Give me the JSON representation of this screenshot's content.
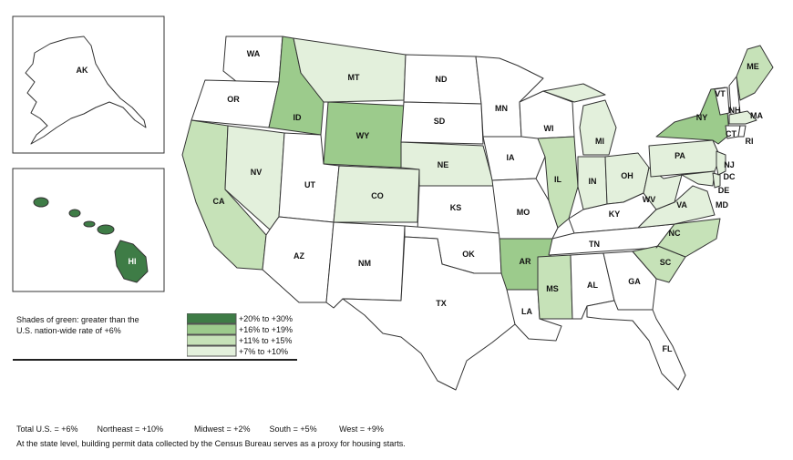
{
  "legend": {
    "title_line1": "Shades of green: greater than the",
    "title_line2": "U.S. nation-wide rate of +6%",
    "items": [
      {
        "label": "+20% to +30%",
        "color": "#3e7c46"
      },
      {
        "label": "+16% to +19%",
        "color": "#9ccb8c"
      },
      {
        "label": "+11% to +15%",
        "color": "#c6e2b8"
      },
      {
        "label": "+7% to +10%",
        "color": "#e3f0dc"
      }
    ]
  },
  "states": {
    "AK": "AK",
    "HI": "HI",
    "WA": "WA",
    "OR": "OR",
    "CA": "CA",
    "NV": "NV",
    "ID": "ID",
    "MT": "MT",
    "WY": "WY",
    "UT": "UT",
    "AZ": "AZ",
    "CO": "CO",
    "NM": "NM",
    "ND": "ND",
    "SD": "SD",
    "NE": "NE",
    "KS": "KS",
    "OK": "OK",
    "TX": "TX",
    "MN": "MN",
    "IA": "IA",
    "MO": "MO",
    "AR": "AR",
    "LA": "LA",
    "WI": "WI",
    "IL": "IL",
    "MS": "MS",
    "MI": "MI",
    "IN": "IN",
    "KY": "KY",
    "TN": "TN",
    "AL": "AL",
    "OH": "OH",
    "GA": "GA",
    "FL": "FL",
    "SC": "SC",
    "NC": "NC",
    "VA": "VA",
    "WV": "WV",
    "PA": "PA",
    "NY": "NY",
    "ME": "ME",
    "VT": "VT",
    "NH": "NH",
    "MA": "MA",
    "CT": "CT",
    "RI": "RI",
    "NJ": "NJ",
    "DE": "DE",
    "MD": "MD",
    "DC": "DC"
  },
  "footer": {
    "total_us": "Total U.S. = +6%",
    "northeast": "Northeast = +10%",
    "midwest": "Midwest = +2%",
    "south": "South = +5%",
    "west": "West = +9%",
    "note": "At the state level, building permit data collected by the Census Bureau serves as a proxy for housing starts."
  }
}
